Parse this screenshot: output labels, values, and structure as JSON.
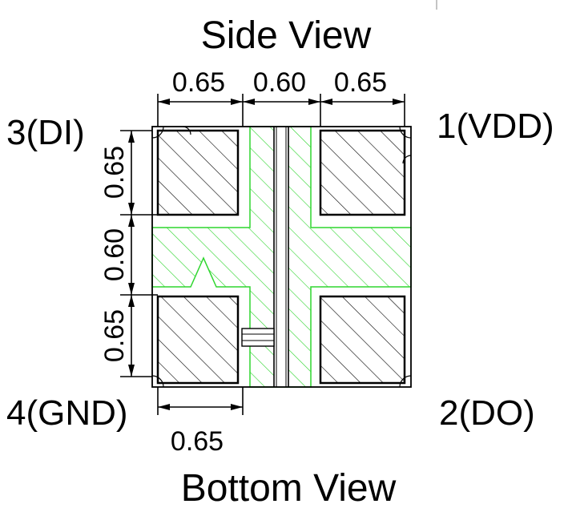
{
  "title_top": "Side View",
  "title_bottom": "Bottom View",
  "pins": {
    "top_left": "3(DI)",
    "top_right": "1(VDD)",
    "bottom_left": "4(GND)",
    "bottom_right": "2(DO)"
  },
  "dimensions": {
    "top": [
      "0.65",
      "0.60",
      "0.65"
    ],
    "left": [
      "0.65",
      "0.60",
      "0.65"
    ],
    "bottom": "0.65"
  },
  "colors": {
    "outline": "#000000",
    "hatch_copper": "#2fd62f",
    "hatch_pad": "#000000",
    "background": "#ffffff"
  }
}
